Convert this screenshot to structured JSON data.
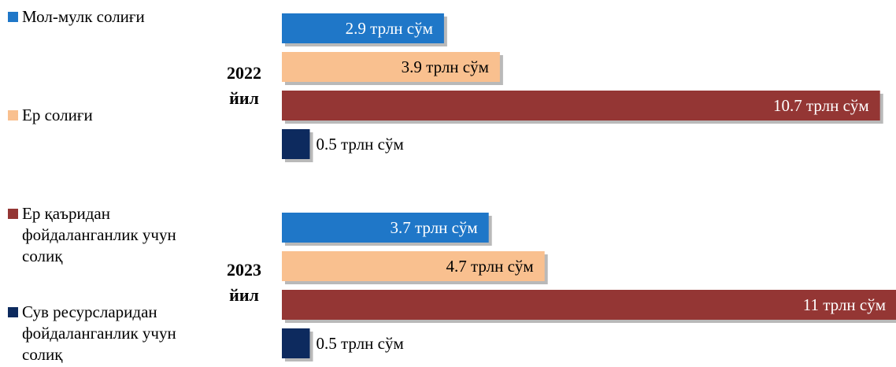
{
  "chart_data": {
    "type": "bar",
    "orientation": "horizontal",
    "categories": [
      "2022 йил",
      "2023 йил"
    ],
    "category_lines": [
      [
        "2022",
        "йил"
      ],
      [
        "2023",
        "йил"
      ]
    ],
    "unit_suffix": "трлн сўм",
    "series": [
      {
        "name": "Мол-мулк солиғи",
        "color": "#1f77c8",
        "values": [
          2.9,
          3.7
        ],
        "labels": [
          "2.9 трлн сўм",
          "3.7 трлн сўм"
        ]
      },
      {
        "name": "Ер солиғи",
        "color": "#f9c08f",
        "values": [
          3.9,
          4.7
        ],
        "labels": [
          "3.9 трлн сўм",
          "4.7 трлн сўм"
        ]
      },
      {
        "name": "Ер қаъридан фойдаланганлик учун солиқ",
        "color": "#943634",
        "values": [
          10.7,
          11
        ],
        "labels": [
          "10.7 трлн сўм",
          "11 трлн сўм"
        ]
      },
      {
        "name": "Сув ресурсларидан фойдаланганлик учун солиқ",
        "color": "#0d2a5e",
        "values": [
          0.5,
          0.5
        ],
        "labels": [
          "0.5 трлн сўм",
          "0.5 трлн сўм"
        ]
      }
    ],
    "legend_position": "left",
    "grid": false
  }
}
